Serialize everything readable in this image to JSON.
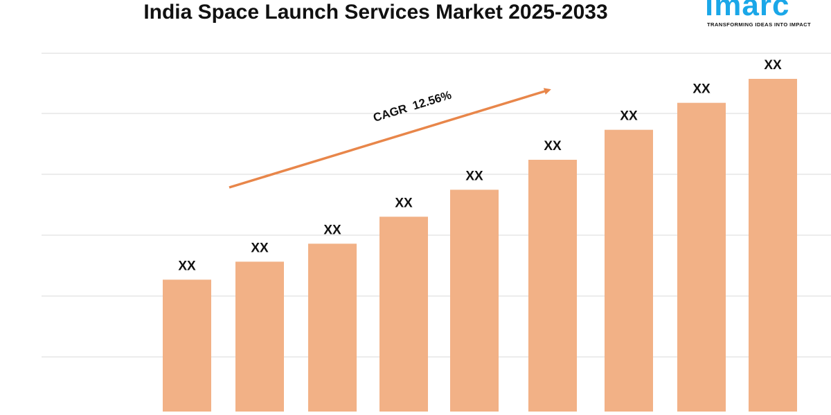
{
  "title": "India Space Launch Services Market 2025-2033",
  "logo": {
    "wordmark": "imarc",
    "tagline": "TRANSFORMING IDEAS INTO IMPACT"
  },
  "colors": {
    "bar": "#f2b186",
    "arrow": "#e8864a",
    "grid": "#d9d9d9",
    "logo": "#1aa7e8"
  },
  "chart_data": {
    "type": "bar",
    "title": "India Space Launch Services Market 2025-2033",
    "categories": [
      "",
      "",
      "",
      "",
      "",
      "",
      "",
      "",
      ""
    ],
    "values": [
      22,
      25,
      28,
      32.5,
      37,
      42,
      47,
      51.5,
      55.5
    ],
    "data_labels": [
      "XX",
      "XX",
      "XX",
      "XX",
      "XX",
      "XX",
      "XX",
      "XX",
      "XX"
    ],
    "ylim": [
      0,
      60
    ],
    "grid": true,
    "annotation": {
      "text": "CAGR  12.56%",
      "shape": "arrow",
      "direction": "up-right"
    },
    "xlabel": "",
    "ylabel": ""
  }
}
